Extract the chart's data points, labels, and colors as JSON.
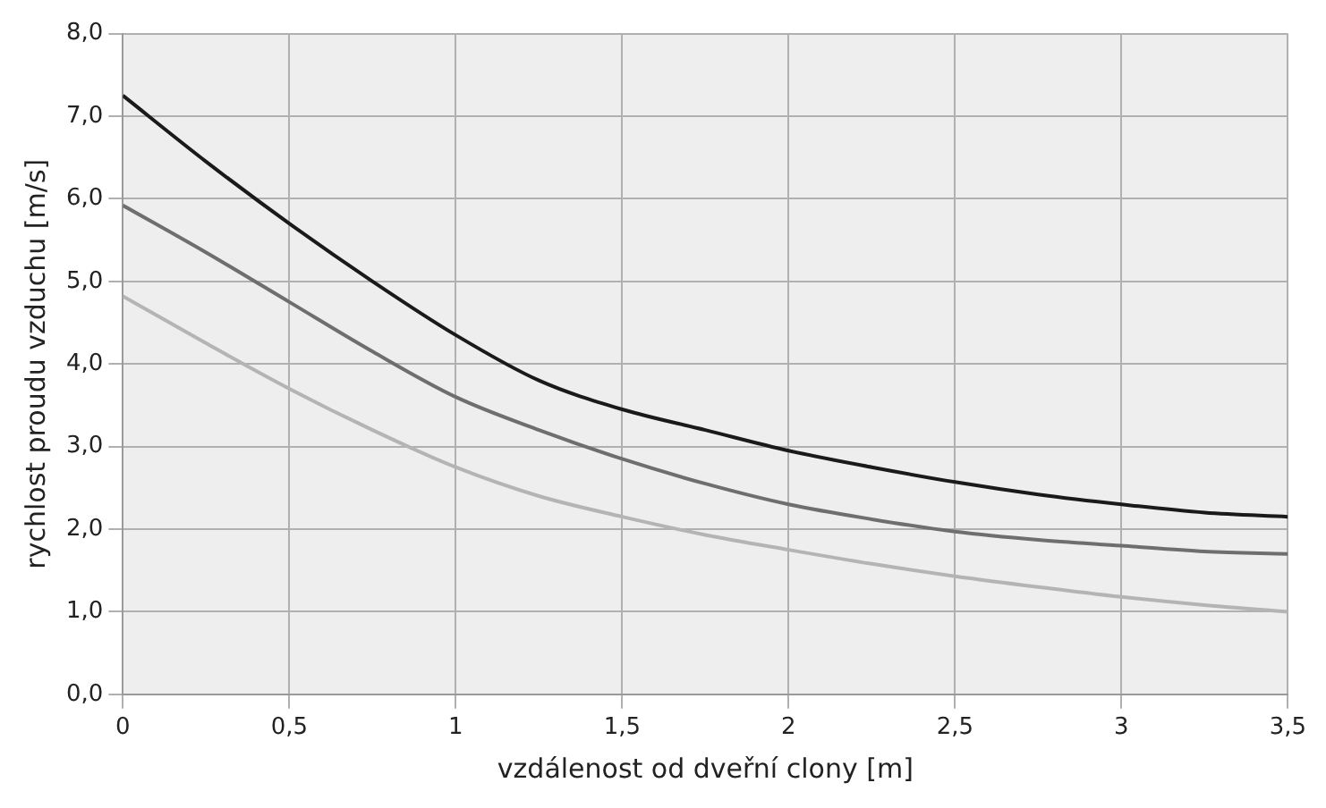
{
  "chart_data": {
    "type": "line",
    "xlabel": "vzdálenost od dveřní clony [m]",
    "ylabel": "rychlost proudu vzduchu [m/s]",
    "x": [
      0,
      0.25,
      0.5,
      0.75,
      1,
      1.25,
      1.5,
      1.75,
      2,
      2.25,
      2.5,
      2.75,
      3,
      3.25,
      3.5
    ],
    "series": [
      {
        "color": "#1a1a1a",
        "values": [
          7.25,
          6.45,
          5.7,
          5.0,
          4.35,
          3.8,
          3.45,
          3.2,
          2.95,
          2.75,
          2.57,
          2.42,
          2.3,
          2.2,
          2.15
        ]
      },
      {
        "color": "#6e6e6e",
        "values": [
          5.92,
          5.35,
          4.75,
          4.15,
          3.6,
          3.2,
          2.85,
          2.55,
          2.3,
          2.12,
          1.97,
          1.87,
          1.8,
          1.73,
          1.7
        ]
      },
      {
        "color": "#b4b4b4",
        "values": [
          4.82,
          4.25,
          3.7,
          3.2,
          2.75,
          2.4,
          2.15,
          1.93,
          1.75,
          1.58,
          1.43,
          1.3,
          1.18,
          1.08,
          1.0
        ]
      }
    ],
    "xlim": [
      0,
      3.5
    ],
    "xticks": [
      0,
      {
        "value": 0.5,
        "label": "0,5"
      },
      1,
      {
        "value": 1.5,
        "label": "1,5"
      },
      2,
      {
        "value": 2.5,
        "label": "2,5"
      },
      3,
      {
        "value": 3.5,
        "label": "3,5"
      }
    ],
    "ylim": [
      0,
      8
    ],
    "yticks": [
      {
        "value": 0,
        "label": "0,0"
      },
      {
        "value": 1,
        "label": "1,0"
      },
      {
        "value": 2,
        "label": "2,0"
      },
      {
        "value": 3,
        "label": "3,0"
      },
      {
        "value": 4,
        "label": "4,0"
      },
      {
        "value": 5,
        "label": "5,0"
      },
      {
        "value": 6,
        "label": "6,0"
      },
      {
        "value": 7,
        "label": "7,0"
      },
      {
        "value": 8,
        "label": "8,0"
      }
    ],
    "grid": true,
    "legend": false,
    "marker": "none",
    "line_style": "solid"
  }
}
